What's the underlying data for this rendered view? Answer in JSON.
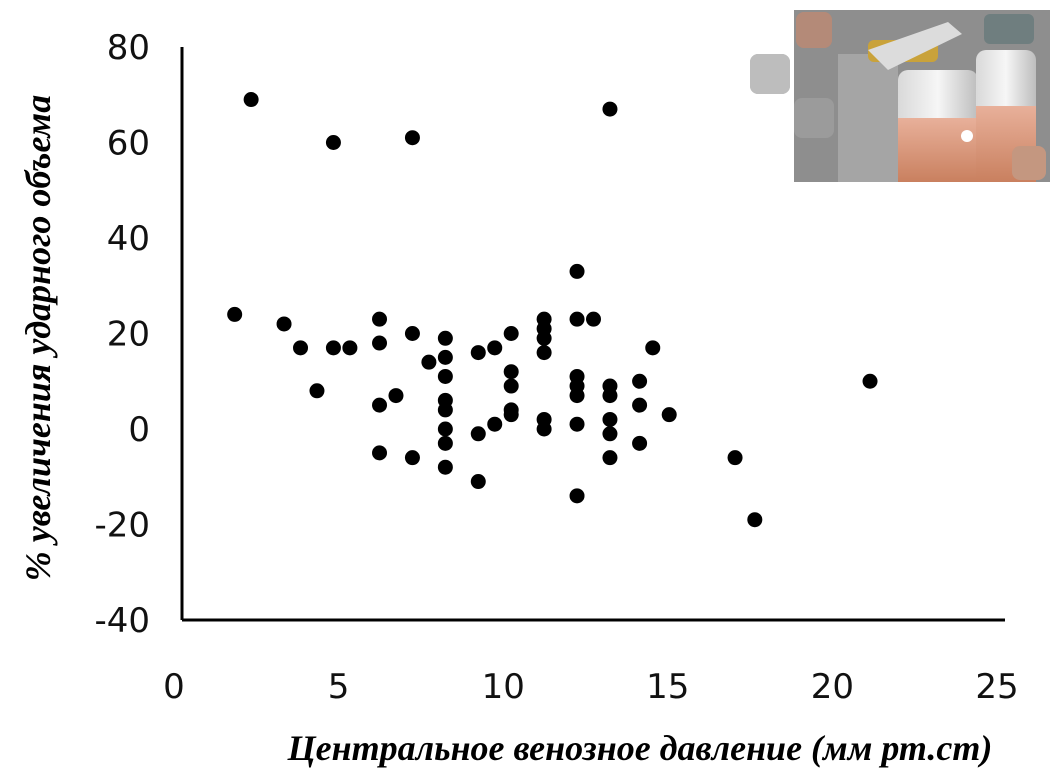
{
  "chart_data": {
    "type": "scatter",
    "title": "",
    "xlabel": "Центральное венозное давление (мм рт.ст)",
    "ylabel": "% увеличения ударного объема",
    "xlim": [
      0,
      25
    ],
    "ylim": [
      -40,
      80
    ],
    "xticks": [
      "0",
      "5",
      "10",
      "15",
      "20",
      "25"
    ],
    "yticks": [
      "80",
      "60",
      "40",
      "20",
      "0",
      "-20",
      "-40"
    ],
    "grid": false,
    "legend": "none",
    "point_color": "#000000",
    "series": [
      {
        "points": [
          [
            1.6,
            24
          ],
          [
            2.1,
            69
          ],
          [
            3.1,
            22
          ],
          [
            3.6,
            17
          ],
          [
            4.1,
            8
          ],
          [
            4.6,
            17
          ],
          [
            4.6,
            60
          ],
          [
            5.1,
            17
          ],
          [
            6.0,
            23
          ],
          [
            6.0,
            18
          ],
          [
            6.0,
            5
          ],
          [
            6.0,
            -5
          ],
          [
            6.5,
            7
          ],
          [
            7.0,
            20
          ],
          [
            7.0,
            61
          ],
          [
            7.0,
            -6
          ],
          [
            7.5,
            14
          ],
          [
            8.0,
            19
          ],
          [
            8.0,
            15
          ],
          [
            8.0,
            11
          ],
          [
            8.0,
            6
          ],
          [
            8.0,
            4
          ],
          [
            8.0,
            0
          ],
          [
            8.0,
            -3
          ],
          [
            8.0,
            -8
          ],
          [
            9.0,
            16
          ],
          [
            9.0,
            -1
          ],
          [
            9.0,
            -11
          ],
          [
            9.5,
            17
          ],
          [
            9.5,
            1
          ],
          [
            10.0,
            20
          ],
          [
            10.0,
            12
          ],
          [
            10.0,
            9
          ],
          [
            10.0,
            4
          ],
          [
            10.0,
            3
          ],
          [
            11.0,
            23
          ],
          [
            11.0,
            21
          ],
          [
            11.0,
            19
          ],
          [
            11.0,
            16
          ],
          [
            11.0,
            2
          ],
          [
            11.0,
            0
          ],
          [
            12.0,
            33
          ],
          [
            12.0,
            23
          ],
          [
            12.0,
            11
          ],
          [
            12.0,
            9
          ],
          [
            12.0,
            7
          ],
          [
            12.0,
            1
          ],
          [
            12.0,
            -14
          ],
          [
            12.5,
            23
          ],
          [
            13.0,
            67
          ],
          [
            13.0,
            9
          ],
          [
            13.0,
            7
          ],
          [
            13.0,
            2
          ],
          [
            13.0,
            -1
          ],
          [
            13.0,
            -6
          ],
          [
            13.9,
            10
          ],
          [
            13.9,
            5
          ],
          [
            13.9,
            -3
          ],
          [
            14.3,
            17
          ],
          [
            14.8,
            3
          ],
          [
            16.8,
            -6
          ],
          [
            17.4,
            -19
          ],
          [
            20.9,
            10
          ]
        ]
      }
    ]
  }
}
